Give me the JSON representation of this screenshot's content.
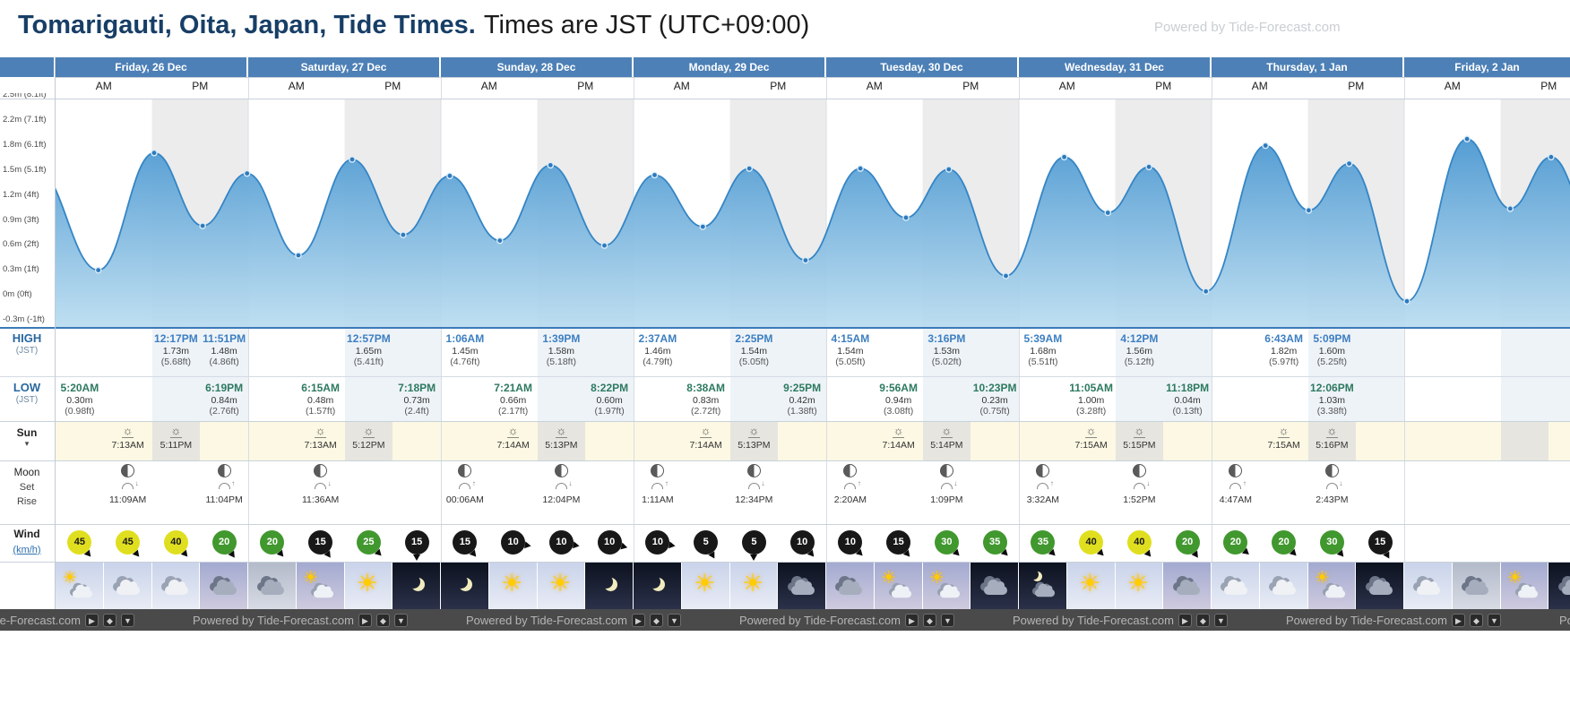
{
  "header": {
    "title_bold": "Tomarigauti, Oita, Japan, Tide Times.",
    "title_rest": "Times are JST (UTC+09:00)",
    "powered_by": "Powered by Tide-Forecast.com"
  },
  "ampm": {
    "am": "AM",
    "pm": "PM"
  },
  "row_labels": {
    "high_line1": "HIGH",
    "high_line2": "(JST)",
    "low_line1": "LOW",
    "low_line2": "(JST)",
    "sun": "Sun",
    "moon_line1": "Moon",
    "moon_line2": "Set",
    "moon_line3": "Rise",
    "wind_line1": "Wind",
    "wind_line2": "(km/h)"
  },
  "icons": {
    "sun": "☀",
    "sun_horizon": "☼",
    "chevron_down": "▾",
    "moon_rise_arrow": "↑",
    "moon_set_arrow": "↓",
    "moon_phase": "half-moon-circle"
  },
  "y_axis_labels": [
    "2.5m (8.1ft)",
    "2.2m (7.1ft)",
    "1.8m (6.1ft)",
    "1.5m (5.1ft)",
    "1.2m (4ft)",
    "0.9m (3ft)",
    "0.6m (2ft)",
    "0.3m (1ft)",
    "0m (0ft)",
    "-0.3m (-1ft)"
  ],
  "wind_colors": {
    "light": "#181818",
    "medium": "#41982e",
    "strong": "#e0df1f",
    "text_light": "#ffffff",
    "text_dark": "#1a1a1a"
  },
  "accent": {
    "header_blue": "#4d80b6",
    "high_time": "#3d7fc1",
    "low_time": "#2d7a5f",
    "curve": "#3585c5",
    "fill_top": "#4f9ad2",
    "fill_bottom": "#b9dcf0"
  },
  "days": [
    {
      "label": "Friday, 26 Dec",
      "high": [
        null,
        null,
        {
          "time": "12:17PM",
          "height_m": "1.73m",
          "height_ft": "(5.68ft)"
        },
        {
          "time": "11:51PM",
          "height_m": "1.48m",
          "height_ft": "(4.86ft)"
        }
      ],
      "low": [
        {
          "time": "5:20AM",
          "height_m": "0.30m",
          "height_ft": "(0.98ft)"
        },
        null,
        null,
        {
          "time": "6:19PM",
          "height_m": "0.84m",
          "height_ft": "(2.76ft)"
        }
      ],
      "sun": {
        "rise": "7:13AM",
        "set": "5:11PM"
      },
      "moon": [
        null,
        {
          "event": "set",
          "time": "11:09AM"
        },
        null,
        {
          "event": "rise",
          "time": "11:04PM"
        }
      ],
      "wind": [
        {
          "kmh": 45,
          "dir": 50
        },
        {
          "kmh": 45,
          "dir": 50
        },
        {
          "kmh": 40,
          "dir": 50
        },
        {
          "kmh": 20,
          "dir": 55
        }
      ],
      "weather": [
        {
          "icon": "sun-cloud",
          "sky": "day"
        },
        {
          "icon": "cloud",
          "sky": "day"
        },
        {
          "icon": "cloud",
          "sky": "day"
        },
        {
          "icon": "cloud-dark",
          "sky": "dusk"
        }
      ]
    },
    {
      "label": "Saturday, 27 Dec",
      "high": [
        null,
        null,
        {
          "time": "12:57PM",
          "height_m": "1.65m",
          "height_ft": "(5.41ft)"
        },
        null
      ],
      "low": [
        null,
        {
          "time": "6:15AM",
          "height_m": "0.48m",
          "height_ft": "(1.57ft)"
        },
        null,
        {
          "time": "7:18PM",
          "height_m": "0.73m",
          "height_ft": "(2.4ft)"
        }
      ],
      "sun": {
        "rise": "7:13AM",
        "set": "5:12PM"
      },
      "moon": [
        null,
        {
          "event": "set",
          "time": "11:36AM"
        },
        null,
        null
      ],
      "wind": [
        {
          "kmh": 20,
          "dir": 50
        },
        {
          "kmh": 15,
          "dir": 55
        },
        {
          "kmh": 25,
          "dir": 45
        },
        {
          "kmh": 15,
          "dir": 90
        }
      ],
      "weather": [
        {
          "icon": "cloud-dark",
          "sky": "gray"
        },
        {
          "icon": "sun-cloud",
          "sky": "dusk"
        },
        {
          "icon": "sun",
          "sky": "day"
        },
        {
          "icon": "moon",
          "sky": "night"
        }
      ]
    },
    {
      "label": "Sunday, 28 Dec",
      "high": [
        {
          "time": "1:06AM",
          "height_m": "1.45m",
          "height_ft": "(4.76ft)"
        },
        null,
        {
          "time": "1:39PM",
          "height_m": "1.58m",
          "height_ft": "(5.18ft)"
        },
        null
      ],
      "low": [
        null,
        {
          "time": "7:21AM",
          "height_m": "0.66m",
          "height_ft": "(2.17ft)"
        },
        null,
        {
          "time": "8:22PM",
          "height_m": "0.60m",
          "height_ft": "(1.97ft)"
        }
      ],
      "sun": {
        "rise": "7:14AM",
        "set": "5:13PM"
      },
      "moon": [
        {
          "event": "rise",
          "time": "00:06AM"
        },
        null,
        {
          "event": "set",
          "time": "12:04PM"
        },
        null
      ],
      "wind": [
        {
          "kmh": 15,
          "dir": 50
        },
        {
          "kmh": 10,
          "dir": 10
        },
        {
          "kmh": 10,
          "dir": 10
        },
        {
          "kmh": 10,
          "dir": 15
        }
      ],
      "weather": [
        {
          "icon": "moon",
          "sky": "night"
        },
        {
          "icon": "sun",
          "sky": "day"
        },
        {
          "icon": "sun",
          "sky": "day"
        },
        {
          "icon": "moon",
          "sky": "night"
        }
      ]
    },
    {
      "label": "Monday, 29 Dec",
      "high": [
        {
          "time": "2:37AM",
          "height_m": "1.46m",
          "height_ft": "(4.79ft)"
        },
        null,
        {
          "time": "2:25PM",
          "height_m": "1.54m",
          "height_ft": "(5.05ft)"
        },
        null
      ],
      "low": [
        null,
        {
          "time": "8:38AM",
          "height_m": "0.83m",
          "height_ft": "(2.72ft)"
        },
        null,
        {
          "time": "9:25PM",
          "height_m": "0.42m",
          "height_ft": "(1.38ft)"
        }
      ],
      "sun": {
        "rise": "7:14AM",
        "set": "5:13PM"
      },
      "moon": [
        {
          "event": "rise",
          "time": "1:11AM"
        },
        null,
        {
          "event": "set",
          "time": "12:34PM"
        },
        null
      ],
      "wind": [
        {
          "kmh": 10,
          "dir": 10
        },
        {
          "kmh": 5,
          "dir": 60
        },
        {
          "kmh": 5,
          "dir": 90
        },
        {
          "kmh": 10,
          "dir": 50
        }
      ],
      "weather": [
        {
          "icon": "moon",
          "sky": "night"
        },
        {
          "icon": "sun",
          "sky": "day"
        },
        {
          "icon": "sun",
          "sky": "day"
        },
        {
          "icon": "cloud-dark",
          "sky": "night"
        }
      ]
    },
    {
      "label": "Tuesday, 30 Dec",
      "high": [
        {
          "time": "4:15AM",
          "height_m": "1.54m",
          "height_ft": "(5.05ft)"
        },
        null,
        {
          "time": "3:16PM",
          "height_m": "1.53m",
          "height_ft": "(5.02ft)"
        },
        null
      ],
      "low": [
        null,
        {
          "time": "9:56AM",
          "height_m": "0.94m",
          "height_ft": "(3.08ft)"
        },
        null,
        {
          "time": "10:23PM",
          "height_m": "0.23m",
          "height_ft": "(0.75ft)"
        }
      ],
      "sun": {
        "rise": "7:14AM",
        "set": "5:14PM"
      },
      "moon": [
        {
          "event": "rise",
          "time": "2:20AM"
        },
        null,
        {
          "event": "set",
          "time": "1:09PM"
        },
        null
      ],
      "wind": [
        {
          "kmh": 10,
          "dir": 45
        },
        {
          "kmh": 15,
          "dir": 50
        },
        {
          "kmh": 30,
          "dir": 45
        },
        {
          "kmh": 35,
          "dir": 45
        }
      ],
      "weather": [
        {
          "icon": "cloud-dark",
          "sky": "dusk"
        },
        {
          "icon": "sun-cloud",
          "sky": "dusk"
        },
        {
          "icon": "sun-cloud",
          "sky": "dusk"
        },
        {
          "icon": "cloud-dark",
          "sky": "night"
        }
      ]
    },
    {
      "label": "Wednesday, 31 Dec",
      "high": [
        {
          "time": "5:39AM",
          "height_m": "1.68m",
          "height_ft": "(5.51ft)"
        },
        null,
        {
          "time": "4:12PM",
          "height_m": "1.56m",
          "height_ft": "(5.12ft)"
        },
        null
      ],
      "low": [
        null,
        {
          "time": "11:05AM",
          "height_m": "1.00m",
          "height_ft": "(3.28ft)"
        },
        null,
        {
          "time": "11:18PM",
          "height_m": "0.04m",
          "height_ft": "(0.13ft)"
        }
      ],
      "sun": {
        "rise": "7:15AM",
        "set": "5:15PM"
      },
      "moon": [
        {
          "event": "rise",
          "time": "3:32AM"
        },
        null,
        {
          "event": "set",
          "time": "1:52PM"
        },
        null
      ],
      "wind": [
        {
          "kmh": 35,
          "dir": 45
        },
        {
          "kmh": 40,
          "dir": 45
        },
        {
          "kmh": 40,
          "dir": 50
        },
        {
          "kmh": 20,
          "dir": 55
        }
      ],
      "weather": [
        {
          "icon": "moon-cloud",
          "sky": "night"
        },
        {
          "icon": "sun",
          "sky": "day"
        },
        {
          "icon": "sun",
          "sky": "day"
        },
        {
          "icon": "cloud-dark",
          "sky": "dusk"
        }
      ]
    },
    {
      "label": "Thursday, 1 Jan",
      "high": [
        null,
        {
          "time": "6:43AM",
          "height_m": "1.82m",
          "height_ft": "(5.97ft)"
        },
        {
          "time": "5:09PM",
          "height_m": "1.60m",
          "height_ft": "(5.25ft)"
        },
        null
      ],
      "low": [
        null,
        null,
        {
          "time": "12:06PM",
          "height_m": "1.03m",
          "height_ft": "(3.38ft)"
        },
        null
      ],
      "sun": {
        "rise": "7:15AM",
        "set": "5:16PM"
      },
      "moon": [
        {
          "event": "rise",
          "time": "4:47AM"
        },
        null,
        {
          "event": "set",
          "time": "2:43PM"
        },
        null
      ],
      "wind": [
        {
          "kmh": 20,
          "dir": 40
        },
        {
          "kmh": 20,
          "dir": 45
        },
        {
          "kmh": 30,
          "dir": 50
        },
        {
          "kmh": 15,
          "dir": 60
        }
      ],
      "weather": [
        {
          "icon": "cloud",
          "sky": "day"
        },
        {
          "icon": "cloud",
          "sky": "day"
        },
        {
          "icon": "sun-cloud",
          "sky": "dusk"
        },
        {
          "icon": "cloud-dark",
          "sky": "night"
        }
      ]
    },
    {
      "label": "Friday, 2 Jan",
      "high": [
        null,
        null,
        null,
        null
      ],
      "low": [
        null,
        null,
        null,
        null
      ],
      "sun": null,
      "moon": [
        null,
        null,
        null,
        null
      ],
      "wind": [],
      "weather": [
        {
          "icon": "cloud",
          "sky": "day"
        },
        {
          "icon": "cloud-dark",
          "sky": "gray"
        },
        {
          "icon": "sun-cloud",
          "sky": "dusk"
        },
        {
          "icon": "cloud-dark",
          "sky": "night"
        }
      ]
    }
  ],
  "chart_data": {
    "type": "area",
    "series_label": "Tide height",
    "x_unit": "hours since Friday 26 Dec 00:00 JST",
    "hours_per_day": 24,
    "y_tick_labels": [
      "2.5m (8.1ft)",
      "2.2m (7.1ft)",
      "1.8m (6.1ft)",
      "1.5m (5.1ft)",
      "1.2m (4ft)",
      "0.9m (3ft)",
      "0.6m (2ft)",
      "0.3m (1ft)",
      "0m (0ft)",
      "-0.3m (-1ft)"
    ],
    "y_range_m": [
      -0.39,
      2.35
    ],
    "lead_in": [
      -2.5,
      1.55
    ],
    "extremes": [
      [
        5.33,
        0.3
      ],
      [
        12.28,
        1.73
      ],
      [
        18.32,
        0.84
      ],
      [
        23.85,
        1.48
      ],
      [
        30.25,
        0.48
      ],
      [
        36.95,
        1.65
      ],
      [
        43.3,
        0.73
      ],
      [
        49.1,
        1.45
      ],
      [
        55.35,
        0.66
      ],
      [
        61.65,
        1.58
      ],
      [
        68.37,
        0.6
      ],
      [
        74.62,
        1.46
      ],
      [
        80.63,
        0.83
      ],
      [
        86.42,
        1.54
      ],
      [
        93.42,
        0.42
      ],
      [
        100.25,
        1.54
      ],
      [
        105.93,
        0.94
      ],
      [
        111.27,
        1.53
      ],
      [
        118.38,
        0.23
      ],
      [
        125.65,
        1.68
      ],
      [
        131.08,
        1.0
      ],
      [
        136.2,
        1.56
      ],
      [
        143.3,
        0.04
      ],
      [
        150.72,
        1.82
      ],
      [
        156.1,
        1.03
      ],
      [
        161.15,
        1.6
      ],
      [
        168.33,
        -0.08
      ],
      [
        175.83,
        1.9
      ],
      [
        181.2,
        1.05
      ],
      [
        186.3,
        1.68
      ]
    ],
    "lead_out": [
      191.5,
      0.9
    ]
  },
  "footer": {
    "powered_by": "Powered by Tide-Forecast.com",
    "badge_icons": [
      "▶",
      "◆",
      "▼"
    ]
  }
}
